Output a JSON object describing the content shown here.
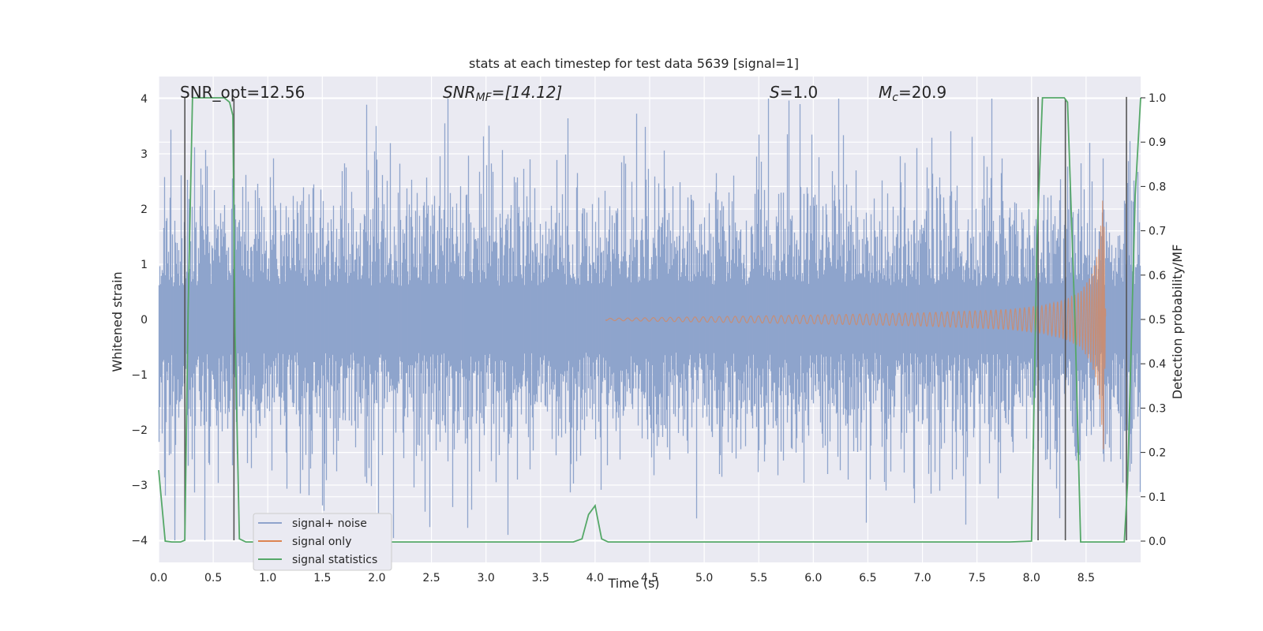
{
  "chart_data": {
    "type": "line",
    "title": "stats at each timestep for test data 5639 [signal=1]",
    "xlabel": "Time (s)",
    "ylabel": "Whitened strain",
    "ylabel_right": "Detection probability/MF",
    "xlim": [
      0,
      9
    ],
    "ylim": [
      -4.4,
      4.4
    ],
    "ylim_right": [
      -0.048,
      1.048
    ],
    "x_ticks": [
      "0.0",
      "0.5",
      "1.0",
      "1.5",
      "2.0",
      "2.5",
      "3.0",
      "3.5",
      "4.0",
      "4.5",
      "5.0",
      "5.5",
      "6.0",
      "6.5",
      "7.0",
      "7.5",
      "8.0",
      "8.5"
    ],
    "y_ticks": [
      "4",
      "3",
      "2",
      "1",
      "0",
      "−1",
      "−2",
      "−3",
      "−4"
    ],
    "y_ticks_right": [
      "1.0",
      "0.9",
      "0.8",
      "0.7",
      "0.6",
      "0.5",
      "0.4",
      "0.3",
      "0.2",
      "0.1",
      "0.0"
    ],
    "grid": true,
    "legend_placement": "lower-left",
    "annotations": {
      "snr_opt": "SNR_opt=12.56",
      "snr_mf_pre": "SNR",
      "snr_mf_sub": "MF",
      "snr_mf_post": "=[14.12]",
      "s_pre": "S",
      "s_post": "=1.0",
      "mc_pre": "M",
      "mc_sub": "c",
      "mc_post": "=20.9"
    },
    "series": [
      {
        "name": "signal+ noise",
        "color": "#8fa4cc",
        "note_envelope": "noise approximately within ±2.5, spikes to ±4",
        "envelope_x": [
          0.0,
          9.0
        ],
        "envelope_y": [
          -2.5,
          2.5
        ]
      },
      {
        "name": "signal only",
        "color": "#dd8452",
        "x": [
          4.1,
          6.0,
          7.0,
          7.8,
          8.1,
          8.3,
          8.45,
          8.55,
          8.62,
          8.66,
          8.68
        ],
        "amplitude": [
          0.02,
          0.08,
          0.12,
          0.18,
          0.25,
          0.35,
          0.5,
          0.8,
          1.3,
          2.4,
          0.0
        ]
      },
      {
        "name": "signal statistics",
        "color": "#55a868",
        "x": [
          0.0,
          0.06,
          0.12,
          0.2,
          0.24,
          0.27,
          0.31,
          0.45,
          0.6,
          0.65,
          0.68,
          0.7,
          0.74,
          0.8,
          1.0,
          2.0,
          3.0,
          3.6,
          3.8,
          3.88,
          3.94,
          4.0,
          4.06,
          4.12,
          4.2,
          5.0,
          6.0,
          7.0,
          7.8,
          8.0,
          8.05,
          8.1,
          8.3,
          8.33,
          8.4,
          8.45,
          8.6,
          8.85,
          8.88,
          8.95,
          9.0
        ],
        "y": [
          0.16,
          0.0,
          -0.002,
          -0.002,
          0.002,
          0.52,
          1.0,
          1.0,
          1.0,
          0.99,
          0.96,
          0.47,
          0.005,
          -0.002,
          -0.002,
          -0.002,
          -0.002,
          -0.002,
          -0.002,
          0.005,
          0.06,
          0.08,
          0.005,
          -0.002,
          -0.002,
          -0.002,
          -0.002,
          -0.002,
          -0.002,
          0.0,
          0.68,
          1.0,
          1.0,
          0.99,
          0.48,
          -0.002,
          -0.002,
          -0.002,
          0.13,
          0.78,
          1.0
        ]
      }
    ],
    "vertical_lines_x": [
      0.24,
      0.69,
      8.06,
      8.31,
      8.87
    ],
    "vertical_lines_top_y": [
      4.03,
      4.0,
      4.03,
      4.0,
      4.03
    ],
    "vertical_lines_color": "#555555"
  }
}
